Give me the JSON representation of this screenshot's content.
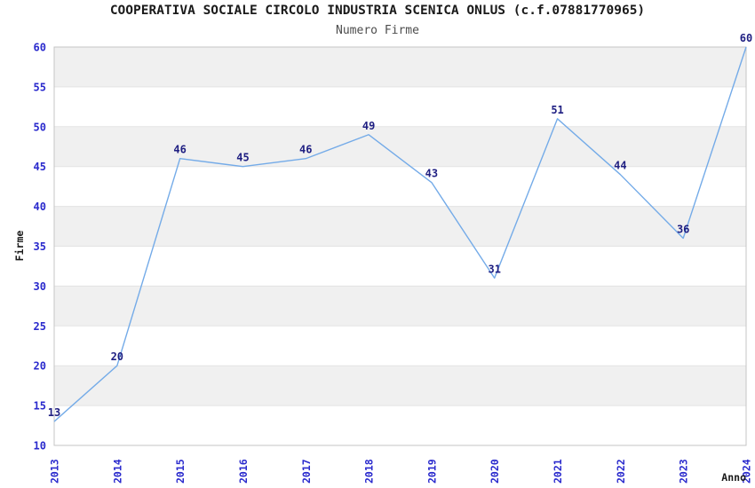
{
  "chart_data": {
    "type": "line",
    "title": "COOPERATIVA SOCIALE CIRCOLO INDUSTRIA SCENICA ONLUS (c.f.07881770965)",
    "subtitle": "Numero Firme",
    "xlabel": "Anno",
    "ylabel": "Firme",
    "x": [
      "2013",
      "2014",
      "2015",
      "2016",
      "2017",
      "2018",
      "2019",
      "2020",
      "2021",
      "2022",
      "2023",
      "2024"
    ],
    "series": [
      {
        "name": "Numero Firme",
        "values": [
          13,
          20,
          46,
          45,
          46,
          49,
          43,
          31,
          51,
          44,
          36,
          60
        ]
      }
    ],
    "point_labels": [
      13,
      20,
      46,
      45,
      46,
      49,
      43,
      31,
      51,
      44,
      36,
      60
    ],
    "ylim": [
      10,
      60
    ],
    "ytick_step": 5,
    "yticks": [
      10,
      15,
      20,
      25,
      30,
      35,
      40,
      45,
      50,
      55,
      60
    ],
    "grid": "horizontal alternating bands, no vertical gridlines",
    "legend": "none",
    "colors": {
      "line": "#74abe8",
      "tick_label": "#2a2acd",
      "data_label": "#1f1f82",
      "band": "#f0f0f0",
      "band_alt": "#ffffff",
      "gridline": "#e3e3e3",
      "plot_border": "#c6c6c6",
      "title": "#1a1a1a",
      "subtitle": "#4d4d4d"
    }
  }
}
